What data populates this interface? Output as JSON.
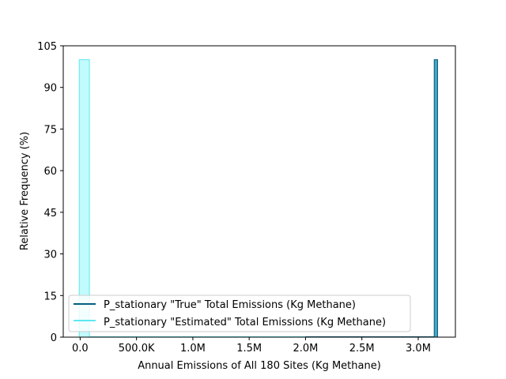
{
  "chart_data": {
    "type": "bar",
    "title": "",
    "xlabel": "Annual Emissions of All 180 Sites (Kg Methane)",
    "ylabel": "Relative Frequency (%)",
    "xlim": [
      -150000,
      3330000
    ],
    "ylim": [
      0,
      105
    ],
    "x_ticks": [
      {
        "value": 0,
        "label": "0.0"
      },
      {
        "value": 500000,
        "label": "500.0K"
      },
      {
        "value": 1000000,
        "label": "1.0M"
      },
      {
        "value": 1500000,
        "label": "1.5M"
      },
      {
        "value": 2000000,
        "label": "2.0M"
      },
      {
        "value": 2500000,
        "label": "2.5M"
      },
      {
        "value": 3000000,
        "label": "3.0M"
      }
    ],
    "y_ticks": [
      {
        "value": 0,
        "label": "0"
      },
      {
        "value": 15,
        "label": "15"
      },
      {
        "value": 30,
        "label": "30"
      },
      {
        "value": 45,
        "label": "45"
      },
      {
        "value": 60,
        "label": "60"
      },
      {
        "value": 75,
        "label": "75"
      },
      {
        "value": 90,
        "label": "90"
      },
      {
        "value": 105,
        "label": "105"
      }
    ],
    "grid": false,
    "legend_position": "lower-left",
    "series": [
      {
        "name": "P_stationary \"True\" Total Emissions (Kg Methane)",
        "color": "#005f7f",
        "fill": "#4aa3bf",
        "bins": [
          {
            "x0": 3142000,
            "x1": 3172000,
            "value": 100
          }
        ]
      },
      {
        "name": "P_stationary \"Estimated\" Total Emissions (Kg Methane)",
        "color": "#5ee8f0",
        "fill": "#c2fbfd",
        "bins": [
          {
            "x0": -8000,
            "x1": 82000,
            "value": 100
          }
        ]
      }
    ]
  }
}
